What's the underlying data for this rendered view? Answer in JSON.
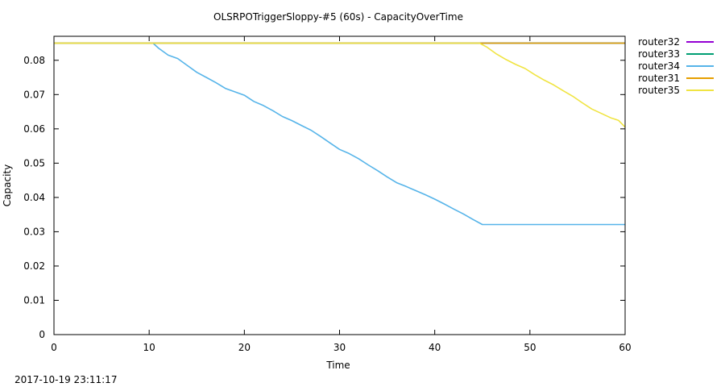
{
  "chart_data": {
    "type": "line",
    "title": "OLSRPOTriggerSloppy-#5 (60s) - CapacityOverTime",
    "xlabel": "Time",
    "ylabel": "Capacity",
    "xlim": [
      0,
      60
    ],
    "ylim": [
      0,
      0.087
    ],
    "xticks": [
      0,
      10,
      20,
      30,
      40,
      50,
      60
    ],
    "yticks": [
      0,
      0.01,
      0.02,
      0.03,
      0.04,
      0.05,
      0.06,
      0.07,
      0.08
    ],
    "ytick_labels": [
      "0",
      "0.01",
      "0.02",
      "0.03",
      "0.04",
      "0.05",
      "0.06",
      "0.07",
      "0.08"
    ],
    "grid": false,
    "legend_position": "outside-top-right",
    "series": [
      {
        "name": "router32",
        "color": "#9400d3",
        "points": [
          [
            0,
            0.085
          ],
          [
            60,
            0.085
          ]
        ]
      },
      {
        "name": "router33",
        "color": "#009e73",
        "points": [
          [
            0,
            0.085
          ],
          [
            60,
            0.085
          ]
        ]
      },
      {
        "name": "router34",
        "color": "#56b4e9",
        "points": [
          [
            0,
            0.085
          ],
          [
            10.4,
            0.085
          ],
          [
            11,
            0.0835
          ],
          [
            12,
            0.0815
          ],
          [
            13,
            0.0805
          ],
          [
            14,
            0.0785
          ],
          [
            15,
            0.0765
          ],
          [
            16,
            0.075
          ],
          [
            17,
            0.0735
          ],
          [
            18,
            0.0718
          ],
          [
            19,
            0.0708
          ],
          [
            20,
            0.0698
          ],
          [
            21,
            0.068
          ],
          [
            22,
            0.0668
          ],
          [
            23,
            0.0653
          ],
          [
            24,
            0.0636
          ],
          [
            25,
            0.0624
          ],
          [
            26,
            0.061
          ],
          [
            27,
            0.0596
          ],
          [
            28,
            0.0578
          ],
          [
            29,
            0.0559
          ],
          [
            30,
            0.054
          ],
          [
            31,
            0.0528
          ],
          [
            32,
            0.0513
          ],
          [
            33,
            0.0495
          ],
          [
            34,
            0.0478
          ],
          [
            35,
            0.046
          ],
          [
            36,
            0.0443
          ],
          [
            37,
            0.0432
          ],
          [
            38,
            0.042
          ],
          [
            39,
            0.0408
          ],
          [
            40,
            0.0395
          ],
          [
            41,
            0.0381
          ],
          [
            42,
            0.0366
          ],
          [
            43,
            0.0352
          ],
          [
            44,
            0.0336
          ],
          [
            45,
            0.0321
          ],
          [
            46,
            0.0321
          ],
          [
            60,
            0.0321
          ]
        ]
      },
      {
        "name": "router31",
        "color": "#e69f00",
        "points": [
          [
            0,
            0.085
          ],
          [
            60,
            0.085
          ]
        ]
      },
      {
        "name": "router35",
        "color": "#f0e442",
        "points": [
          [
            0,
            0.085
          ],
          [
            44.7,
            0.085
          ],
          [
            45.5,
            0.0838
          ],
          [
            46.5,
            0.0818
          ],
          [
            47.5,
            0.0802
          ],
          [
            48.5,
            0.0788
          ],
          [
            49.5,
            0.0776
          ],
          [
            50.5,
            0.0758
          ],
          [
            51.5,
            0.0742
          ],
          [
            52.5,
            0.0728
          ],
          [
            53.5,
            0.0711
          ],
          [
            54.5,
            0.0695
          ],
          [
            55.5,
            0.0676
          ],
          [
            56.5,
            0.0658
          ],
          [
            57.5,
            0.0645
          ],
          [
            58.5,
            0.0632
          ],
          [
            59.3,
            0.0625
          ],
          [
            60,
            0.0605
          ]
        ]
      }
    ]
  },
  "timestamp": "2017-10-19 23:11:17"
}
